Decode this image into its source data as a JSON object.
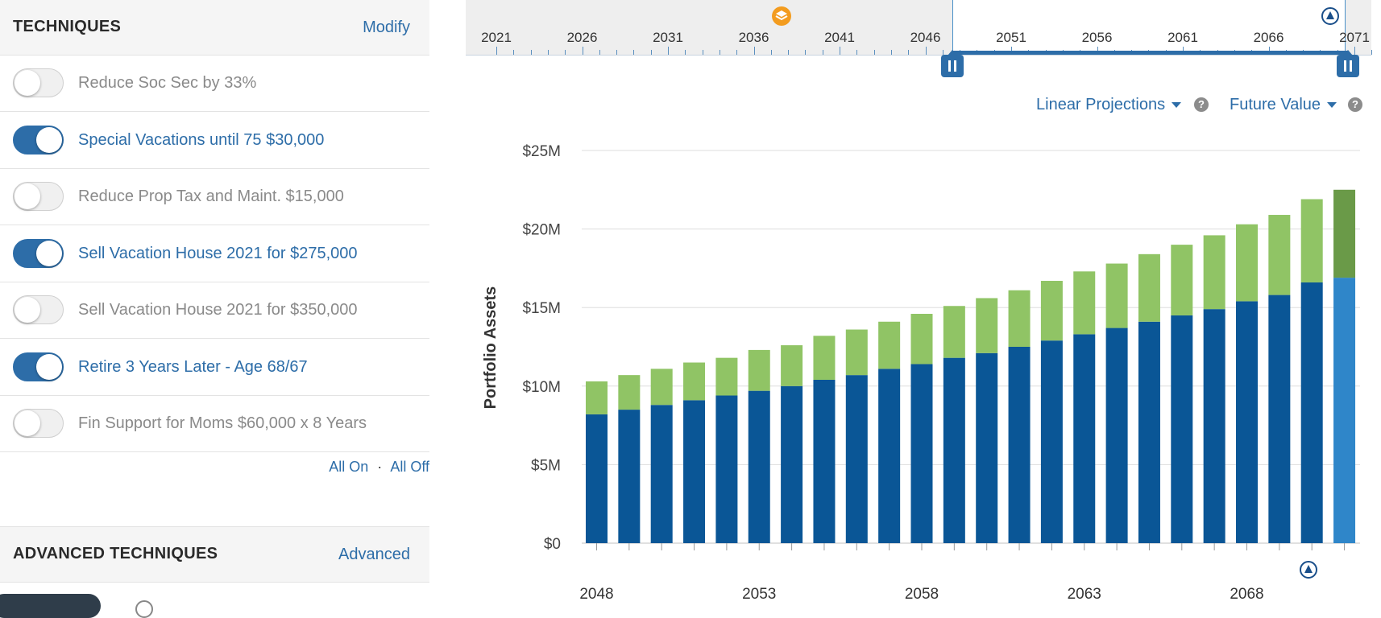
{
  "techniques": {
    "title": "TECHNIQUES",
    "modify_label": "Modify",
    "items": [
      {
        "label": "Reduce Soc Sec by 33%",
        "enabled": false
      },
      {
        "label": "Special Vacations until 75 $30,000",
        "enabled": true
      },
      {
        "label": "Reduce Prop Tax and Maint. $15,000",
        "enabled": false
      },
      {
        "label": "Sell Vacation House 2021 for $275,000",
        "enabled": true
      },
      {
        "label": "Sell Vacation House 2021 for $350,000",
        "enabled": false
      },
      {
        "label": "Retire 3 Years Later - Age 68/67",
        "enabled": true
      },
      {
        "label": "Fin Support for Moms $60,000 x 8 Years",
        "enabled": false
      }
    ],
    "all_on_label": "All On",
    "separator": "·",
    "all_off_label": "All Off"
  },
  "advanced": {
    "title": "ADVANCED TECHNIQUES",
    "link_label": "Advanced"
  },
  "timeline": {
    "years": [
      "2021",
      "2026",
      "2031",
      "2036",
      "2041",
      "2046",
      "2051",
      "2056",
      "2061",
      "2066",
      "2071"
    ],
    "range_start": 2048,
    "range_end": 2071
  },
  "controls": {
    "projection_label": "Linear Projections",
    "value_label": "Future Value",
    "help_glyph": "?"
  },
  "colors": {
    "primary_blue": "#2d6da8",
    "bar_dark_blue": "#0a5696",
    "bar_green": "#90c465",
    "bar_light_blue": "#2f86c9",
    "bar_dark_green": "#6a9a48",
    "toggle_on": "#2d6da8",
    "layers_icon": "#f39c1f"
  },
  "chart_data": {
    "type": "bar",
    "stacked": true,
    "ylabel": "Portfolio Assets",
    "yticks": [
      "$0",
      "$5M",
      "$10M",
      "$15M",
      "$20M",
      "$25M"
    ],
    "ylim": [
      0,
      25
    ],
    "unit": "millions USD",
    "xtick_labels": [
      "2048",
      "2053",
      "2058",
      "2063",
      "2068"
    ],
    "categories": [
      "2048",
      "2049",
      "2050",
      "2051",
      "2052",
      "2053",
      "2054",
      "2055",
      "2056",
      "2057",
      "2058",
      "2059",
      "2060",
      "2061",
      "2062",
      "2063",
      "2064",
      "2065",
      "2066",
      "2067",
      "2068",
      "2069",
      "2070",
      "2071"
    ],
    "series": [
      {
        "values": [
          8.2,
          8.5,
          8.8,
          9.1,
          9.4,
          9.7,
          10.0,
          10.4,
          10.7,
          11.1,
          11.4,
          11.8,
          12.1,
          12.5,
          12.9,
          13.3,
          13.7,
          14.1,
          14.5,
          14.9,
          15.4,
          15.8,
          16.6,
          16.9
        ]
      },
      {
        "values": [
          2.1,
          2.2,
          2.3,
          2.4,
          2.4,
          2.6,
          2.6,
          2.8,
          2.9,
          3.0,
          3.2,
          3.3,
          3.5,
          3.6,
          3.8,
          4.0,
          4.1,
          4.3,
          4.5,
          4.7,
          4.9,
          5.1,
          5.3,
          5.6
        ]
      }
    ],
    "highlight_last": true,
    "grid": true
  }
}
